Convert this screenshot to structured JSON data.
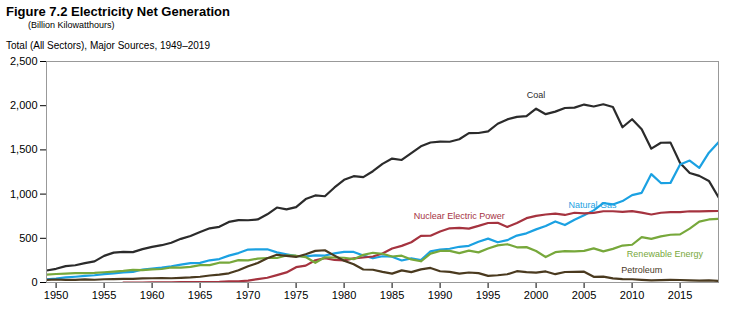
{
  "chart_data": {
    "type": "line",
    "title": "Figure 7.2 Electricity Net Generation",
    "subtitle": "(Billion Kilowatthours)",
    "caption": "Total (All Sectors), Major Sources, 1949–2019",
    "x": [
      1949,
      1950,
      1951,
      1952,
      1953,
      1954,
      1955,
      1956,
      1957,
      1958,
      1959,
      1960,
      1961,
      1962,
      1963,
      1964,
      1965,
      1966,
      1967,
      1968,
      1969,
      1970,
      1971,
      1972,
      1973,
      1974,
      1975,
      1976,
      1977,
      1978,
      1979,
      1980,
      1981,
      1982,
      1983,
      1984,
      1985,
      1986,
      1987,
      1988,
      1989,
      1990,
      1991,
      1992,
      1993,
      1994,
      1995,
      1996,
      1997,
      1998,
      1999,
      2000,
      2001,
      2002,
      2003,
      2004,
      2005,
      2006,
      2007,
      2008,
      2009,
      2010,
      2011,
      2012,
      2013,
      2014,
      2015,
      2016,
      2017,
      2018,
      2019
    ],
    "xlim": [
      1949,
      2019
    ],
    "xticks": [
      1950,
      1955,
      1960,
      1965,
      1970,
      1975,
      1980,
      1985,
      1990,
      1995,
      2000,
      2005,
      2010,
      2015
    ],
    "ylim": [
      0,
      2500
    ],
    "yticks": [
      0,
      500,
      {
        "value": 1000,
        "label": "1,000"
      },
      {
        "value": 1500,
        "label": "1,500"
      },
      {
        "value": 2000,
        "label": "2,000"
      },
      {
        "value": 2500,
        "label": "2,500"
      }
    ],
    "grid": false,
    "series": [
      {
        "name": "Coal",
        "color": "#2b2b2b",
        "values": [
          136,
          155,
          185,
          195,
          219,
          239,
          301,
          338,
          346,
          344,
          378,
          403,
          422,
          450,
          494,
          526,
          571,
          613,
          630,
          685,
          706,
          704,
          713,
          771,
          848,
          828,
          853,
          944,
          985,
          976,
          1075,
          1162,
          1203,
          1192,
          1259,
          1342,
          1402,
          1386,
          1464,
          1541,
          1584,
          1594,
          1592,
          1621,
          1690,
          1691,
          1709,
          1796,
          1845,
          1874,
          1881,
          1966,
          1904,
          1933,
          1974,
          1978,
          2013,
          1991,
          2016,
          1986,
          1756,
          1847,
          1733,
          1514,
          1581,
          1582,
          1352,
          1239,
          1206,
          1149,
          965
        ]
      },
      {
        "name": "Natural Gas",
        "color": "#1ba1e2",
        "values": [
          37,
          45,
          57,
          65,
          75,
          82,
          95,
          104,
          114,
          120,
          147,
          158,
          169,
          184,
          202,
          220,
          222,
          251,
          265,
          304,
          333,
          373,
          374,
          376,
          341,
          320,
          300,
          295,
          306,
          305,
          329,
          346,
          346,
          305,
          274,
          297,
          292,
          249,
          273,
          253,
          352,
          373,
          382,
          404,
          415,
          461,
          496,
          455,
          479,
          531,
          556,
          601,
          639,
          691,
          650,
          710,
          761,
          816,
          897,
          883,
          921,
          988,
          1014,
          1226,
          1125,
          1127,
          1335,
          1379,
          1297,
          1469,
          1586
        ]
      },
      {
        "name": "Nuclear Electric Power",
        "color": "#a5333f",
        "values": [
          null,
          null,
          null,
          null,
          null,
          null,
          null,
          null,
          0,
          0.2,
          0.2,
          0.5,
          1.7,
          2.3,
          3.2,
          3.3,
          3.7,
          5.5,
          7.7,
          12.5,
          13.9,
          21.8,
          38.1,
          54.1,
          83.5,
          114,
          173,
          191,
          251,
          276,
          255,
          251,
          273,
          283,
          294,
          328,
          384,
          414,
          455,
          527,
          529,
          577,
          613,
          619,
          610,
          640,
          673,
          675,
          629,
          674,
          728,
          754,
          769,
          780,
          764,
          789,
          782,
          787,
          806,
          806,
          799,
          807,
          790,
          769,
          789,
          797,
          797,
          806,
          805,
          807,
          809
        ]
      },
      {
        "name": "Renewable Energy",
        "color": "#77a83b",
        "values": [
          90,
          96,
          101,
          106,
          106,
          109,
          116,
          124,
          131,
          142,
          140,
          149,
          153,
          170,
          169,
          177,
          196,
          196,
          224,
          224,
          253,
          251,
          270,
          277,
          277,
          306,
          303,
          288,
          223,
          285,
          283,
          280,
          264,
          313,
          336,
          325,
          294,
          303,
          261,
          240,
          326,
          357,
          358,
          332,
          360,
          341,
          384,
          420,
          433,
          398,
          400,
          356,
          288,
          343,
          355,
          351,
          358,
          386,
          352,
          380,
          418,
          427,
          513,
          494,
          522,
          540,
          544,
          610,
          688,
          713,
          720
        ]
      },
      {
        "name": "Petroleum",
        "color": "#4a3a1f",
        "values": [
          29,
          34,
          29,
          30,
          35,
          31,
          37,
          38,
          40,
          40,
          47,
          48,
          49,
          48,
          52,
          57,
          65,
          79,
          89,
          104,
          138,
          184,
          220,
          274,
          314,
          301,
          289,
          320,
          358,
          365,
          304,
          246,
          206,
          147,
          144,
          120,
          100,
          137,
          118,
          149,
          165,
          127,
          120,
          100,
          113,
          106,
          75,
          82,
          93,
          128,
          118,
          111,
          125,
          94,
          119,
          121,
          122,
          64,
          66,
          46,
          39,
          37,
          30,
          23,
          27,
          30,
          28,
          24,
          21,
          25,
          18
        ]
      }
    ]
  }
}
